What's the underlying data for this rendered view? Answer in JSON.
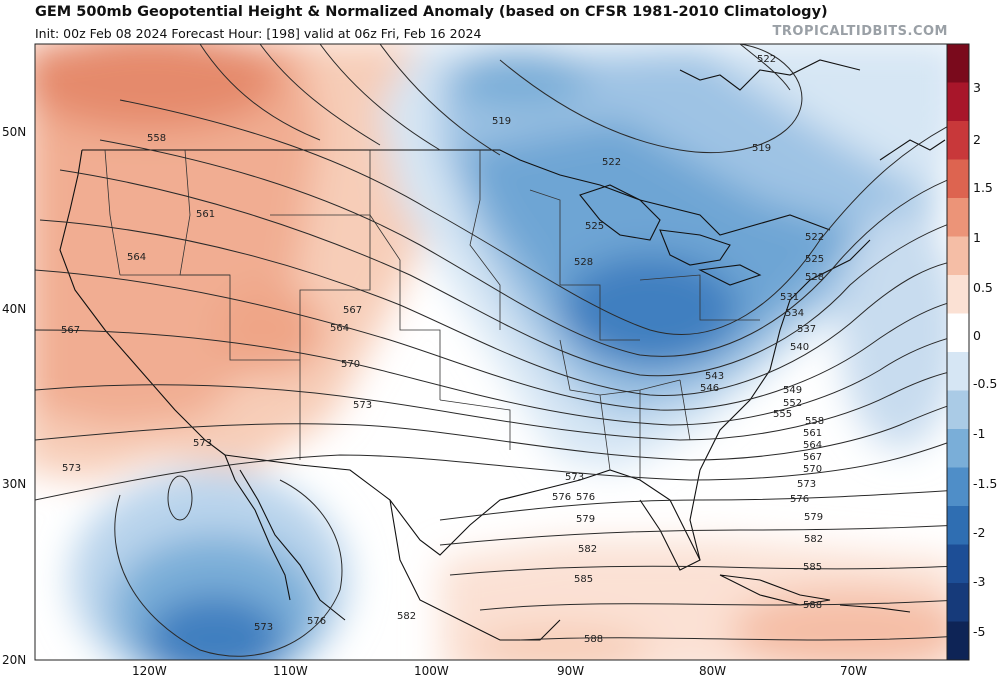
{
  "header": {
    "title": "GEM 500mb Geopotential Height & Normalized Anomaly (based on CFSR 1981-2010 Climatology)",
    "subtitle": "Init: 00z Feb 08 2024   Forecast Hour: [198]   valid at 06z Fri, Feb 16 2024",
    "brand": "TROPICALTIDBITS.COM"
  },
  "axes": {
    "lat_labels": [
      "50N",
      "40N",
      "30N",
      "20N"
    ],
    "lon_labels": [
      "120W",
      "110W",
      "100W",
      "90W",
      "80W",
      "70W"
    ]
  },
  "colorbar": {
    "labels": [
      "3",
      "2",
      "1.5",
      "1",
      "0.5",
      "0",
      "-0.5",
      "-1",
      "-1.5",
      "-2",
      "-3",
      "-5"
    ],
    "colors": [
      "#7a0a1c",
      "#a8162a",
      "#c8383a",
      "#dd6450",
      "#ec9478",
      "#f5bea6",
      "#fbe1d4",
      "#ffffff",
      "#d6e6f4",
      "#aacbe6",
      "#7aaed8",
      "#4f8ec8",
      "#2f6eb2",
      "#1d4e96",
      "#163a7a",
      "#0e2456"
    ]
  },
  "contours": {
    "labels": [
      "522",
      "519",
      "519",
      "522",
      "525",
      "528",
      "522",
      "525",
      "528",
      "531",
      "534",
      "537",
      "540",
      "543",
      "546",
      "549",
      "552",
      "555",
      "558",
      "561",
      "564",
      "567",
      "570",
      "573",
      "576",
      "579",
      "582",
      "585",
      "588",
      "558",
      "561",
      "564",
      "567",
      "564",
      "567",
      "570",
      "573",
      "573",
      "573",
      "573",
      "576",
      "579",
      "582",
      "585",
      "588",
      "576",
      "573",
      "582",
      "576"
    ]
  }
}
